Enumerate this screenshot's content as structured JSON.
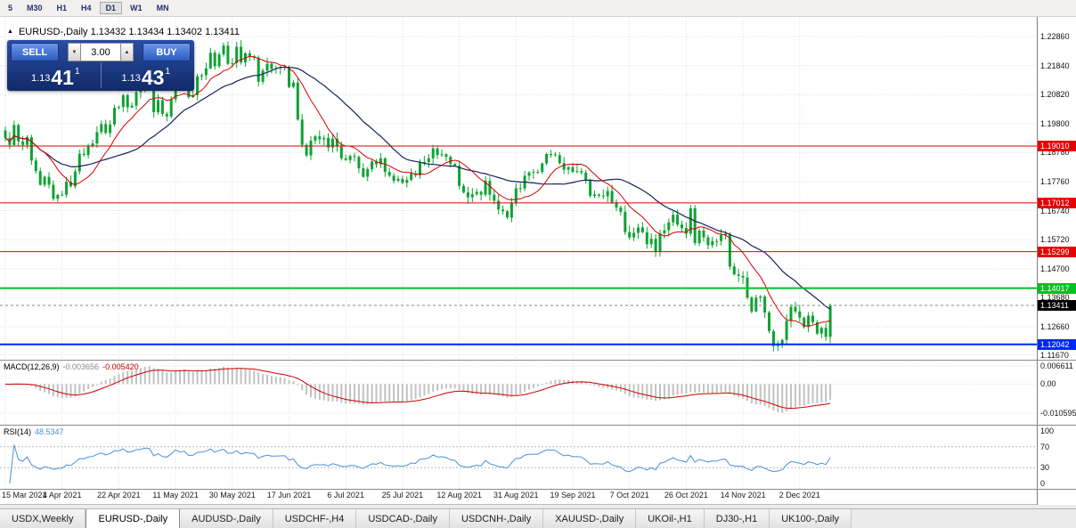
{
  "toolbar": {
    "timeframes": [
      "5",
      "M30",
      "H1",
      "H4",
      "D1",
      "W1",
      "MN"
    ]
  },
  "chart_header": {
    "title": "EURUSD-,Daily 1.13432 1.13434 1.13402 1.13411"
  },
  "icons": {
    "collapse": "▲",
    "volume_down": "▼",
    "volume_up": "▲"
  },
  "trade_panel": {
    "sell_label": "SELL",
    "buy_label": "BUY",
    "volume": "3.00",
    "sell_price_prefix": "1.13",
    "sell_price_big": "41",
    "sell_price_sup": "1",
    "buy_price_prefix": "1.13",
    "buy_price_big": "43",
    "buy_price_sup": "1"
  },
  "price_axis": {
    "labels": [
      "1.22860",
      "1.21840",
      "1.20820",
      "1.19800",
      "1.18780",
      "1.17760",
      "1.16740",
      "1.15720",
      "1.14700",
      "1.13680",
      "1.12660",
      "1.11670"
    ]
  },
  "macd_axis": {
    "labels": [
      "0.006611",
      "0.00",
      "-0.010595"
    ]
  },
  "rsi_axis": {
    "labels": [
      "100",
      "70",
      "30",
      "0"
    ]
  },
  "macd_panel": {
    "name": "MACD(12,26,9)",
    "main": "-0.003656",
    "signal": "-0.005420"
  },
  "rsi_panel": {
    "name": "RSI(14)",
    "value": "48.5347"
  },
  "tabs": [
    {
      "label": "USDX,Weekly",
      "active": false
    },
    {
      "label": "EURUSD-,Daily",
      "active": true
    },
    {
      "label": "AUDUSD-,Daily",
      "active": false
    },
    {
      "label": "USDCHF-,H4",
      "active": false
    },
    {
      "label": "USDCAD-,Daily",
      "active": false
    },
    {
      "label": "USDCNH-,Daily",
      "active": false
    },
    {
      "label": "XAUUSD-,Daily",
      "active": false
    },
    {
      "label": "UKOil-,H1",
      "active": false
    },
    {
      "label": "DJ30-,H1",
      "active": false
    },
    {
      "label": "UK100-,Daily",
      "active": false
    }
  ],
  "chart_data": {
    "type": "candlestick",
    "title": "EURUSD-,Daily",
    "x_labels": [
      "15 Mar 2021",
      "4 Apr 2021",
      "22 Apr 2021",
      "11 May 2021",
      "30 May 2021",
      "17 Jun 2021",
      "6 Jul 2021",
      "25 Jul 2021",
      "12 Aug 2021",
      "31 Aug 2021",
      "19 Sep 2021",
      "7 Oct 2021",
      "26 Oct 2021",
      "14 Nov 2021",
      "2 Dec 2021"
    ],
    "label_step": 13,
    "closes": [
      1.193,
      1.1905,
      1.1975,
      1.1917,
      1.1905,
      1.1932,
      1.185,
      1.1813,
      1.1765,
      1.1793,
      1.1765,
      1.1716,
      1.1729,
      1.173,
      1.1776,
      1.176,
      1.1812,
      1.1874,
      1.187,
      1.19,
      1.191,
      1.195,
      1.1978,
      1.1947,
      1.1977,
      1.2035,
      1.2038,
      1.208,
      1.2037,
      1.2043,
      1.209,
      1.2096,
      1.2125,
      1.2122,
      1.202,
      1.2062,
      1.2014,
      1.2005,
      1.2065,
      1.2163,
      1.2129,
      1.2147,
      1.2073,
      1.208,
      1.2146,
      1.215,
      1.2174,
      1.2229,
      1.2181,
      1.2223,
      1.2254,
      1.219,
      1.2192,
      1.225,
      1.2195,
      1.2227,
      1.2217,
      1.2212,
      1.2127,
      1.2166,
      1.219,
      1.2172,
      1.2174,
      1.2177,
      1.2179,
      1.2109,
      1.2124,
      1.1994,
      1.1905,
      1.1868,
      1.192,
      1.1935,
      1.1925,
      1.193,
      1.1896,
      1.1927,
      1.1899,
      1.1858,
      1.1852,
      1.1866,
      1.1863,
      1.1823,
      1.1793,
      1.182,
      1.1847,
      1.1837,
      1.1858,
      1.181,
      1.1797,
      1.1779,
      1.1786,
      1.1772,
      1.1782,
      1.1805,
      1.1798,
      1.1843,
      1.1845,
      1.1858,
      1.1893,
      1.187,
      1.1872,
      1.1863,
      1.1838,
      1.1832,
      1.1761,
      1.1738,
      1.1721,
      1.1732,
      1.174,
      1.173,
      1.1779,
      1.173,
      1.1709,
      1.1678,
      1.1672,
      1.165,
      1.1701,
      1.1753,
      1.1752,
      1.1797,
      1.1808,
      1.181,
      1.181,
      1.184,
      1.1873,
      1.1872,
      1.1869,
      1.1841,
      1.1818,
      1.1827,
      1.181,
      1.1813,
      1.1808,
      1.1779,
      1.1726,
      1.1731,
      1.1727,
      1.1725,
      1.1743,
      1.1703,
      1.1685,
      1.167,
      1.1599,
      1.158,
      1.1596,
      1.1615,
      1.1598,
      1.1556,
      1.1575,
      1.153,
      1.1594,
      1.1605,
      1.1633,
      1.166,
      1.1625,
      1.1613,
      1.1593,
      1.1682,
      1.156,
      1.1604,
      1.158,
      1.1553,
      1.1567,
      1.1567,
      1.1588,
      1.1593,
      1.1478,
      1.145,
      1.1445,
      1.1439,
      1.1369,
      1.132,
      1.1368,
      1.1372,
      1.1316,
      1.1251,
      1.1198,
      1.1205,
      1.122,
      1.1287,
      1.1336,
      1.132,
      1.1298,
      1.1265,
      1.1305,
      1.1282,
      1.1242,
      1.1262,
      1.1231,
      1.1341
    ],
    "ylim": [
      1.11502,
      1.23517
    ],
    "macd_ylim": [
      -0.0147,
      0.0085
    ],
    "rsi_ylim": [
      -10,
      110
    ],
    "ma_fast_period": 10,
    "ma_slow_period": 25,
    "current_price": {
      "label": "1.13411",
      "color": "#000000"
    },
    "hlines": [
      {
        "label": "1.19010",
        "color": "#e60000",
        "width": 1
      },
      {
        "label": "1.17012",
        "color": "#e60000",
        "width": 1
      },
      {
        "label": "1.15299",
        "color": "#e60000",
        "width": 1
      },
      {
        "label": "1.14017",
        "color": "#00c322",
        "width": 2
      },
      {
        "label": "1.12042",
        "color": "#0026ff",
        "width": 2
      }
    ],
    "colors": {
      "candle": "#0da232",
      "ma_fast": "#d40000",
      "ma_slow": "#1a2260",
      "macd_hist": "#c2c2c2",
      "macd_signal": "#cc0000",
      "rsi": "#4a90d9",
      "grid": "#dedede"
    }
  }
}
